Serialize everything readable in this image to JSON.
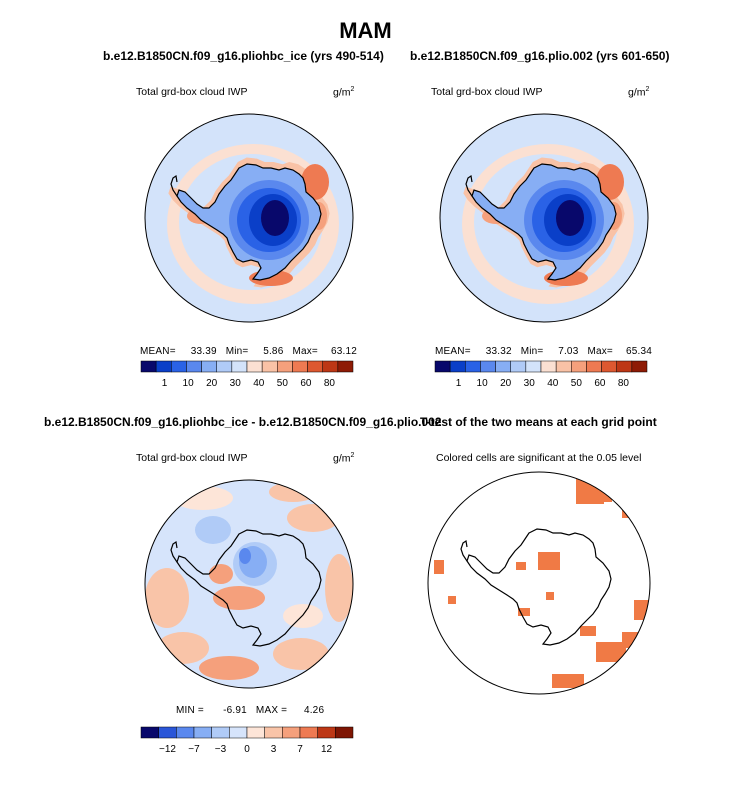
{
  "page": {
    "title": "MAM"
  },
  "chart_data": [
    {
      "type": "heatmap",
      "projection": "polar-stereographic-south",
      "title": "b.e12.B1850CN.f09_g16.pliohbc_ice (yrs 490-514)",
      "variable_label": "Total grd-box cloud IWP",
      "units": "g/m",
      "units_superscript": "2",
      "stats": {
        "mean_label": "MEAN=",
        "mean": "33.39",
        "min_label": "Min=",
        "min": "5.86",
        "max_label": "Max=",
        "max": "63.12"
      },
      "colorbar": {
        "levels": [
          "1",
          "10",
          "20",
          "30",
          "40",
          "50",
          "60",
          "80"
        ],
        "colors": [
          "#08086b",
          "#0a3fc8",
          "#2a62e6",
          "#5a88ee",
          "#87aef4",
          "#b0cbf7",
          "#d3e3fa",
          "#fbe0d2",
          "#f9c2a6",
          "#f5a07c",
          "#ee7a52",
          "#dd5830",
          "#bd3715",
          "#8e1b05"
        ]
      },
      "approx_zonal_means": {
        "antarctic_interior": 5,
        "coastal_ring": 55,
        "southern_ocean": 35
      }
    },
    {
      "type": "heatmap",
      "projection": "polar-stereographic-south",
      "title": "b.e12.B1850CN.f09_g16.plio.002 (yrs 601-650)",
      "variable_label": "Total grd-box cloud IWP",
      "units": "g/m",
      "units_superscript": "2",
      "stats": {
        "mean_label": "MEAN=",
        "mean": "33.32",
        "min_label": "Min=",
        "min": "7.03",
        "max_label": "Max=",
        "max": "65.34"
      },
      "colorbar": {
        "levels": [
          "1",
          "10",
          "20",
          "30",
          "40",
          "50",
          "60",
          "80"
        ],
        "colors": [
          "#08086b",
          "#0a3fc8",
          "#2a62e6",
          "#5a88ee",
          "#87aef4",
          "#b0cbf7",
          "#d3e3fa",
          "#fbe0d2",
          "#f9c2a6",
          "#f5a07c",
          "#ee7a52",
          "#dd5830",
          "#bd3715",
          "#8e1b05"
        ]
      },
      "approx_zonal_means": {
        "antarctic_interior": 7,
        "coastal_ring": 55,
        "southern_ocean": 35
      }
    },
    {
      "type": "heatmap",
      "projection": "polar-stereographic-south",
      "title": "b.e12.B1850CN.f09_g16.pliohbc_ice - b.e12.B1850CN.f09_g16.plio.002",
      "variable_label": "Total grd-box cloud IWP",
      "units": "g/m",
      "units_superscript": "2",
      "stats": {
        "min_label": "MIN =",
        "min": "-6.91",
        "max_label": "MAX =",
        "max": "4.26"
      },
      "colorbar": {
        "levels": [
          "−12",
          "−7",
          "−3",
          "0",
          "3",
          "7",
          "12"
        ],
        "colors": [
          "#08086b",
          "#2a56d8",
          "#5a88ee",
          "#87aef4",
          "#b0cbf7",
          "#d6e4fb",
          "#fde5d8",
          "#f9c4a8",
          "#f5a07c",
          "#ee7a52",
          "#bd3715",
          "#7e1503"
        ]
      }
    },
    {
      "type": "heatmap",
      "projection": "polar-stereographic-south",
      "title": "T-test of the two means at each grid point",
      "variable_label": "Colored cells are significant at the 0.05 level",
      "significant_color": "#f07a45"
    }
  ]
}
